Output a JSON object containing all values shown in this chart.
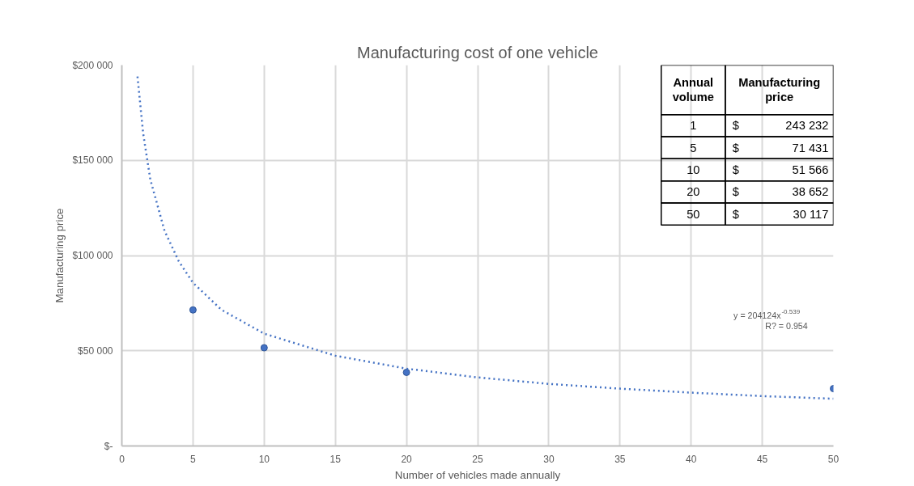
{
  "chart_data": {
    "type": "scatter",
    "title": "Manufacturing cost of one vehicle",
    "xlabel": "Number of vehicles made annually",
    "ylabel": "Manufacturing price",
    "xlim": [
      0,
      50
    ],
    "ylim": [
      0,
      200000
    ],
    "xticks": [
      0,
      5,
      10,
      15,
      20,
      25,
      30,
      35,
      40,
      45,
      50
    ],
    "yticks": [
      {
        "value": 0,
        "label": "$-"
      },
      {
        "value": 50000,
        "label": "$50 000"
      },
      {
        "value": 100000,
        "label": "$100 000"
      },
      {
        "value": 150000,
        "label": "$150 000"
      },
      {
        "value": 200000,
        "label": "$200 000"
      }
    ],
    "grid": true,
    "series": [
      {
        "color": "#4472c4",
        "marker": "circle",
        "x": [
          5,
          10,
          20,
          50
        ],
        "values": [
          71431,
          51566,
          38652,
          30117
        ]
      },
      {
        "type": "line",
        "color": "#4472c4",
        "line_style": "dotted",
        "x": [
          1.1,
          1.5,
          2,
          3,
          4,
          5,
          7,
          10,
          15,
          20,
          25,
          30,
          35,
          40,
          45,
          50
        ],
        "values": [
          194000,
          164000,
          140000,
          113000,
          97000,
          85700,
          71500,
          59000,
          47400,
          40600,
          36000,
          32600,
          30100,
          28000,
          26200,
          24800
        ]
      }
    ],
    "annotations": [
      "y = 204124x$^{-0.539}$",
      "R? = 0.954",
      "Annual volume",
      "Manufacturing price",
      "1",
      "$",
      "243 232",
      "5",
      "$",
      "71 431",
      "10",
      "$",
      "51 566",
      "20",
      "$",
      "38 652",
      "50",
      "$",
      "30 117"
    ]
  }
}
